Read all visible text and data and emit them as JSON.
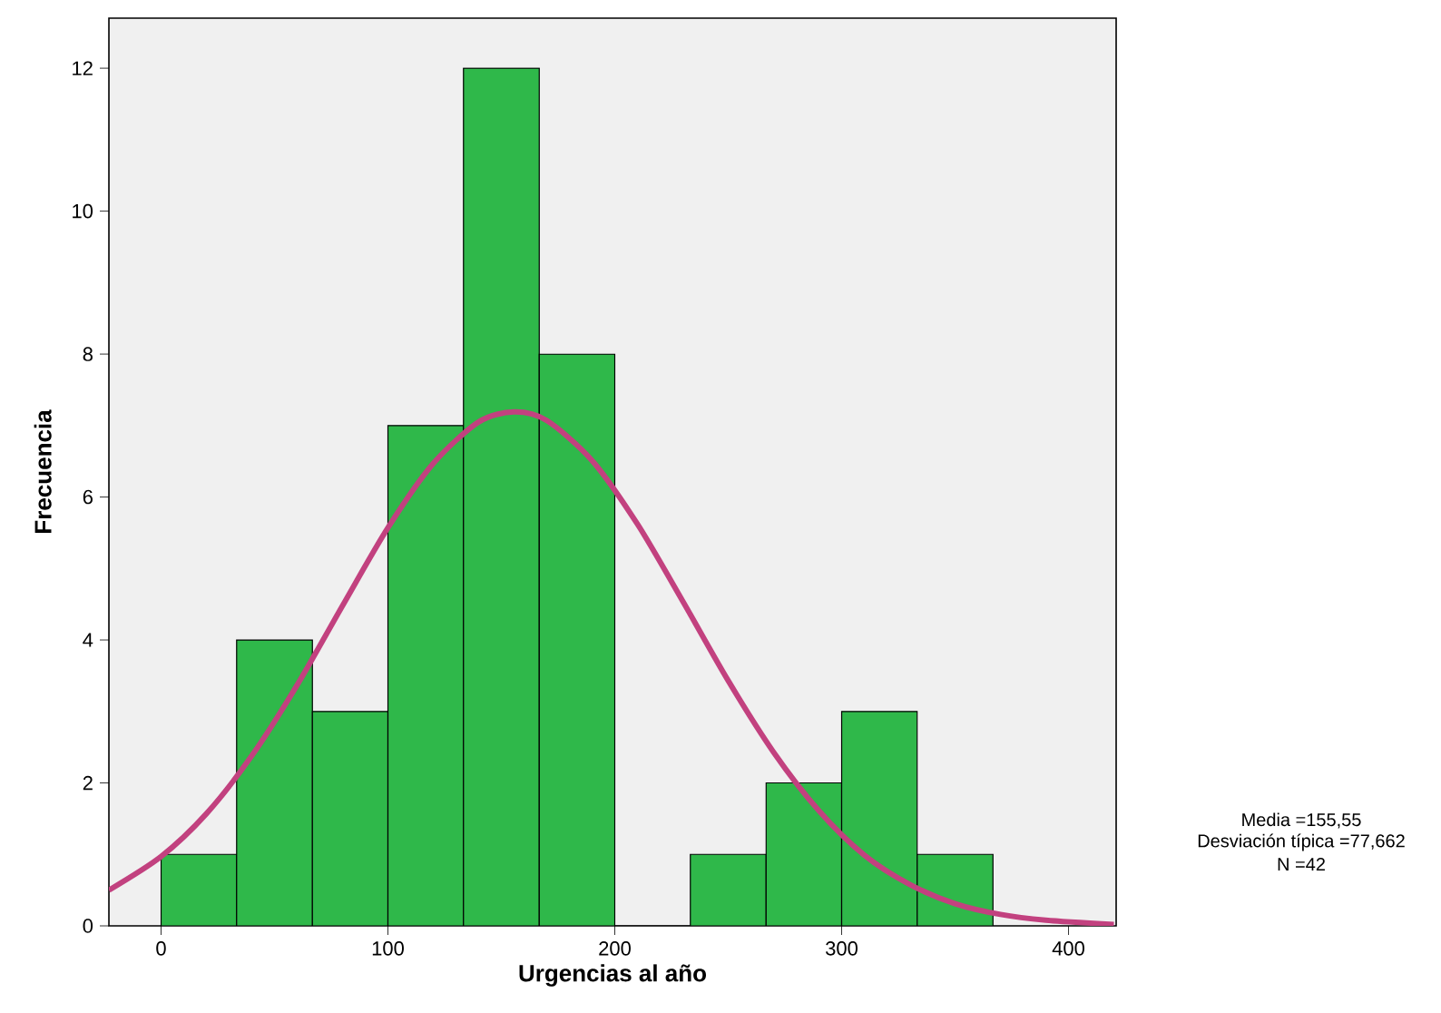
{
  "chart_data": {
    "type": "histogram",
    "xlabel": "Urgencias al año",
    "ylabel": "Frecuencia",
    "bins": [
      0,
      33.3,
      66.7,
      100,
      133.3,
      166.7,
      200,
      233.3,
      266.7,
      300,
      333.3,
      366.7
    ],
    "values": [
      1,
      4,
      3,
      7,
      12,
      8,
      0,
      1,
      2,
      3,
      1
    ],
    "color": "#2fb84a",
    "series": [
      {
        "type": "line",
        "color": "#c2417f",
        "x": [
          -23,
          0,
          20,
          40,
          60,
          80,
          100,
          120,
          140,
          155.55,
          170,
          190,
          210,
          230,
          250,
          270,
          290,
          310,
          330,
          350,
          370,
          390,
          420
        ],
        "values": [
          0.5,
          0.97,
          1.57,
          2.38,
          3.37,
          4.48,
          5.57,
          6.47,
          7.05,
          7.19,
          7.07,
          6.51,
          5.62,
          4.54,
          3.43,
          2.43,
          1.61,
          0.99,
          0.58,
          0.31,
          0.16,
          0.08,
          0.02
        ]
      }
    ],
    "xlim": [
      -23,
      421
    ],
    "ylim": [
      0,
      12.7
    ],
    "xticks": [
      0,
      100,
      200,
      300,
      400
    ],
    "yticks": [
      0,
      2,
      4,
      6,
      8,
      10,
      12
    ],
    "grid": false,
    "annotations": [
      "Media =155,55",
      "Desviación típica =77,662",
      "N =42"
    ]
  }
}
